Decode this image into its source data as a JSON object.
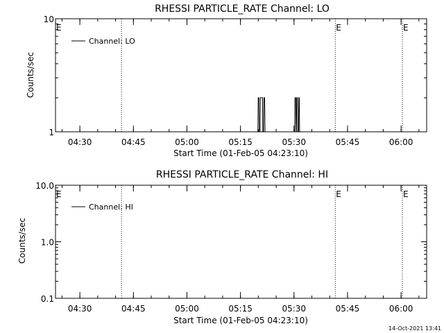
{
  "colors": {
    "background": "#ffffff",
    "foreground": "#000000"
  },
  "footer": {
    "timestamp": "14-Oct-2021 13:41"
  },
  "chart_data": [
    {
      "type": "line",
      "title": "RHESSI PARTICLE_RATE Channel: LO",
      "xlabel": "Start Time (01-Feb-05 04:23:10)",
      "ylabel": "Counts/sec",
      "x_unit": "minutes after 04:23:10",
      "xlim": [
        0,
        104
      ],
      "ylim": [
        1,
        10
      ],
      "yscale": "log",
      "ytick_labels": [
        "1",
        "10"
      ],
      "xtick_labels": [
        "04:30",
        "04:45",
        "05:00",
        "05:15",
        "05:30",
        "05:45",
        "06:00"
      ],
      "xticks": [
        6.83,
        21.83,
        36.83,
        51.83,
        66.83,
        81.83,
        96.83
      ],
      "legend": {
        "position": "top-left",
        "entries": [
          "Channel: LO"
        ]
      },
      "markers": {
        "label": "E",
        "x": [
          0,
          78.4,
          97.2
        ]
      },
      "vlines_dotted": [
        18.5,
        78.4,
        97.2
      ],
      "series": [
        {
          "name": "Channel: LO",
          "x": [
            56.7,
            56.8,
            57.0,
            57.1,
            57.3,
            57.4,
            58.0,
            58.1,
            58.3,
            58.4,
            58.6,
            58.7,
            67.0,
            67.1,
            67.3,
            67.4,
            67.5,
            67.6,
            67.8,
            67.9,
            68.1,
            68.2,
            68.3,
            68.4
          ],
          "y": [
            1,
            2,
            2,
            1,
            1,
            2,
            2,
            1,
            1,
            2,
            2,
            1,
            1,
            2,
            2,
            1,
            1,
            2,
            2,
            1,
            1,
            2,
            2,
            1
          ]
        }
      ]
    },
    {
      "type": "line",
      "title": "RHESSI PARTICLE_RATE Channel: HI",
      "xlabel": "Start Time (01-Feb-05 04:23:10)",
      "ylabel": "Counts/sec",
      "x_unit": "minutes after 04:23:10",
      "xlim": [
        0,
        104
      ],
      "ylim": [
        0.1,
        10
      ],
      "yscale": "log",
      "ytick_labels": [
        "0.1",
        "1.0",
        "10.0"
      ],
      "xtick_labels": [
        "04:30",
        "04:45",
        "05:00",
        "05:15",
        "05:30",
        "05:45",
        "06:00"
      ],
      "xticks": [
        6.83,
        21.83,
        36.83,
        51.83,
        66.83,
        81.83,
        96.83
      ],
      "legend": {
        "position": "top-left",
        "entries": [
          "Channel: HI"
        ]
      },
      "markers": {
        "label": "E",
        "x": [
          0,
          78.4,
          97.2
        ]
      },
      "vlines_dotted": [
        18.5,
        78.4,
        97.2
      ],
      "series": [
        {
          "name": "Channel: HI",
          "x": [],
          "y": []
        }
      ]
    }
  ]
}
